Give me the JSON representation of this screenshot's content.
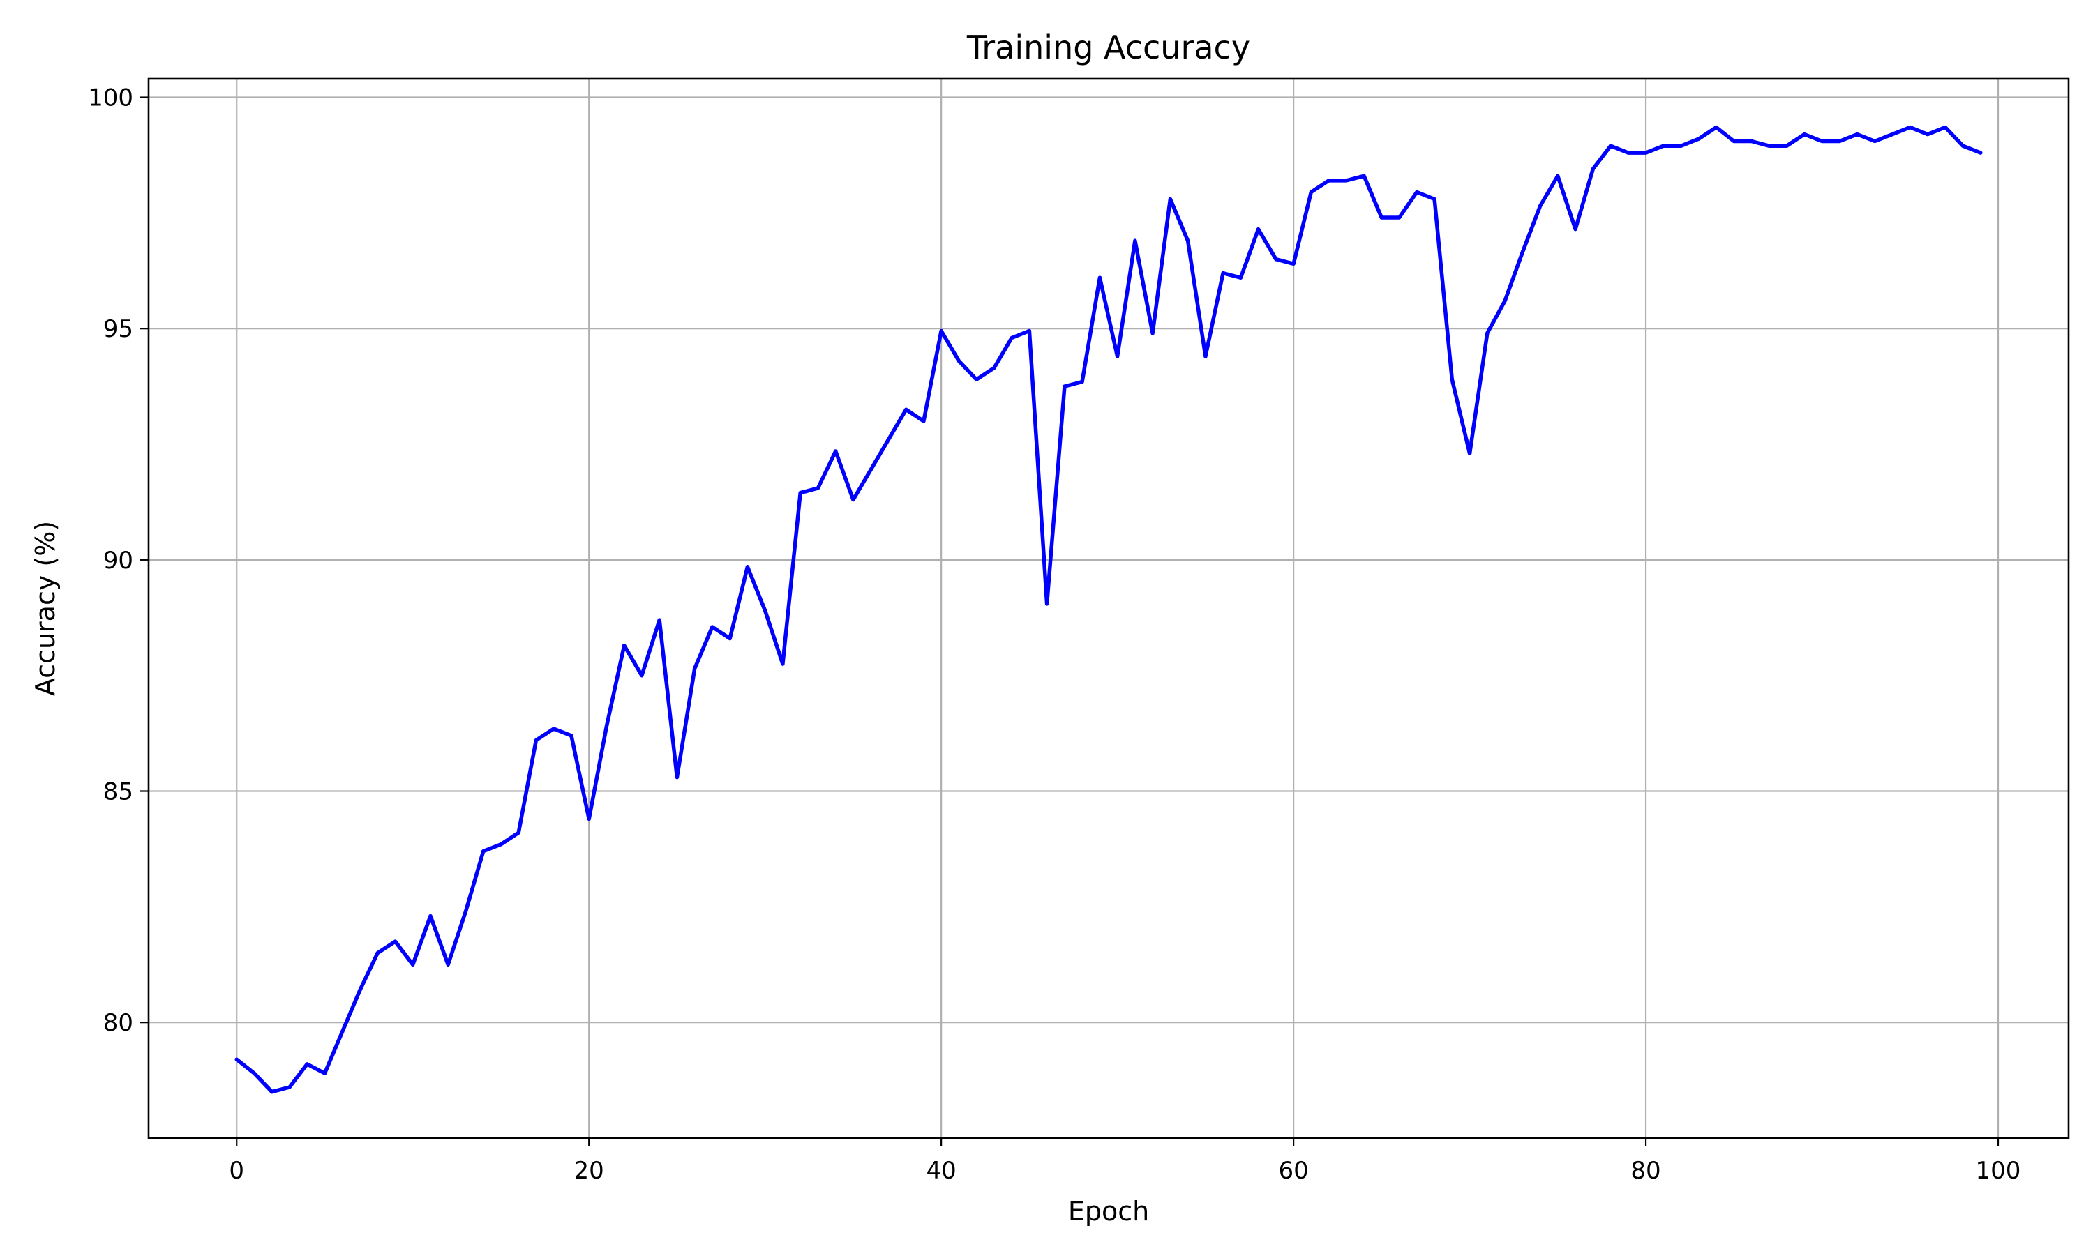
{
  "chart_data": {
    "type": "line",
    "title": "Training Accuracy",
    "xlabel": "Epoch",
    "ylabel": "Accuracy (%)",
    "xlim": [
      -5,
      104
    ],
    "ylim": [
      77.5,
      100.4
    ],
    "xticks": [
      0,
      20,
      40,
      60,
      80,
      100
    ],
    "yticks": [
      80,
      85,
      90,
      95,
      100
    ],
    "xtick_labels": [
      "0",
      "20",
      "40",
      "60",
      "80",
      "100"
    ],
    "ytick_labels": [
      "80",
      "85",
      "90",
      "95",
      "100"
    ],
    "grid": true,
    "line_color": "#0000ff",
    "grid_color": "#b0b0b0",
    "series": [
      {
        "x": [
          0,
          1,
          2,
          3,
          4,
          5,
          6,
          7,
          8,
          9,
          10,
          11,
          12,
          13,
          14,
          15,
          16,
          17,
          18,
          19,
          20,
          21,
          22,
          23,
          24,
          25,
          26,
          27,
          28,
          29,
          30,
          31,
          32,
          33,
          34,
          35,
          36,
          37,
          38,
          39,
          40,
          41,
          42,
          43,
          44,
          45,
          46,
          47,
          48,
          49,
          50,
          51,
          52,
          53,
          54,
          55,
          56,
          57,
          58,
          59,
          60,
          61,
          62,
          63,
          64,
          65,
          66,
          67,
          68,
          69,
          70,
          71,
          72,
          73,
          74,
          75,
          76,
          77,
          78,
          79,
          80,
          81,
          82,
          83,
          84,
          85,
          86,
          87,
          88,
          89,
          90,
          91,
          92,
          93,
          94,
          95,
          96,
          97,
          98,
          99
        ],
        "values": [
          79.2,
          78.9,
          78.5,
          78.6,
          79.1,
          78.9,
          79.8,
          80.7,
          81.5,
          81.75,
          81.25,
          82.3,
          81.25,
          82.4,
          83.7,
          83.85,
          84.1,
          86.1,
          86.35,
          86.2,
          84.4,
          86.4,
          88.15,
          87.5,
          88.7,
          85.3,
          87.65,
          88.55,
          88.3,
          89.85,
          88.9,
          87.75,
          91.45,
          91.55,
          92.35,
          91.3,
          91.95,
          92.6,
          93.25,
          93.0,
          94.95,
          94.3,
          93.9,
          94.15,
          94.8,
          94.95,
          89.05,
          93.75,
          93.85,
          96.1,
          94.4,
          96.9,
          94.9,
          97.8,
          96.9,
          94.4,
          96.2,
          96.1,
          97.15,
          96.5,
          96.4,
          97.95,
          98.2,
          98.2,
          98.3,
          97.4,
          97.4,
          97.95,
          97.8,
          93.9,
          92.3,
          94.9,
          95.6,
          96.65,
          97.65,
          98.3,
          97.15,
          98.45,
          98.95,
          98.8,
          98.8,
          98.95,
          98.95,
          99.1,
          99.35,
          99.05,
          99.05,
          98.95,
          98.95,
          99.2,
          99.05,
          99.05,
          99.2,
          99.05,
          99.2,
          99.35,
          99.2,
          99.35,
          98.95,
          98.8
        ]
      }
    ]
  }
}
